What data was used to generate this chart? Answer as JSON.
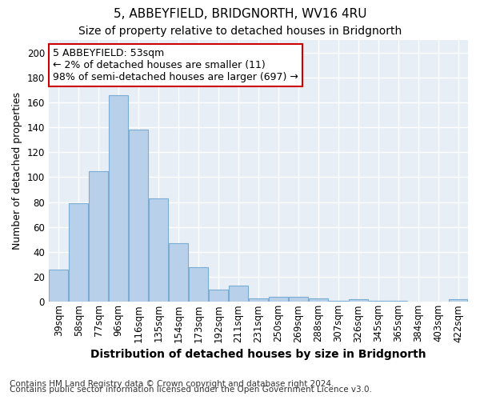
{
  "title1": "5, ABBEYFIELD, BRIDGNORTH, WV16 4RU",
  "title2": "Size of property relative to detached houses in Bridgnorth",
  "xlabel": "Distribution of detached houses by size in Bridgnorth",
  "ylabel": "Number of detached properties",
  "categories": [
    "39sqm",
    "58sqm",
    "77sqm",
    "96sqm",
    "116sqm",
    "135sqm",
    "154sqm",
    "173sqm",
    "192sqm",
    "211sqm",
    "231sqm",
    "250sqm",
    "269sqm",
    "288sqm",
    "307sqm",
    "326sqm",
    "345sqm",
    "365sqm",
    "384sqm",
    "403sqm",
    "422sqm"
  ],
  "values": [
    26,
    79,
    105,
    166,
    138,
    83,
    47,
    28,
    10,
    13,
    3,
    4,
    4,
    3,
    1,
    2,
    1,
    1,
    0,
    0,
    2
  ],
  "bar_color": "#b8d0ea",
  "bar_edge_color": "#7aadd4",
  "annotation_text": "5 ABBEYFIELD: 53sqm\n← 2% of detached houses are smaller (11)\n98% of semi-detached houses are larger (697) →",
  "annotation_box_color": "#ffffff",
  "annotation_box_edge": "#cc0000",
  "ylim": [
    0,
    210
  ],
  "yticks": [
    0,
    20,
    40,
    60,
    80,
    100,
    120,
    140,
    160,
    180,
    200
  ],
  "footer1": "Contains HM Land Registry data © Crown copyright and database right 2024.",
  "footer2": "Contains public sector information licensed under the Open Government Licence v3.0.",
  "bg_color": "#ffffff",
  "plot_bg_color": "#e8eef5",
  "grid_color": "#ffffff",
  "title1_fontsize": 11,
  "title2_fontsize": 10,
  "xlabel_fontsize": 10,
  "ylabel_fontsize": 9,
  "tick_fontsize": 8.5,
  "annot_fontsize": 9,
  "footer_fontsize": 7.5
}
